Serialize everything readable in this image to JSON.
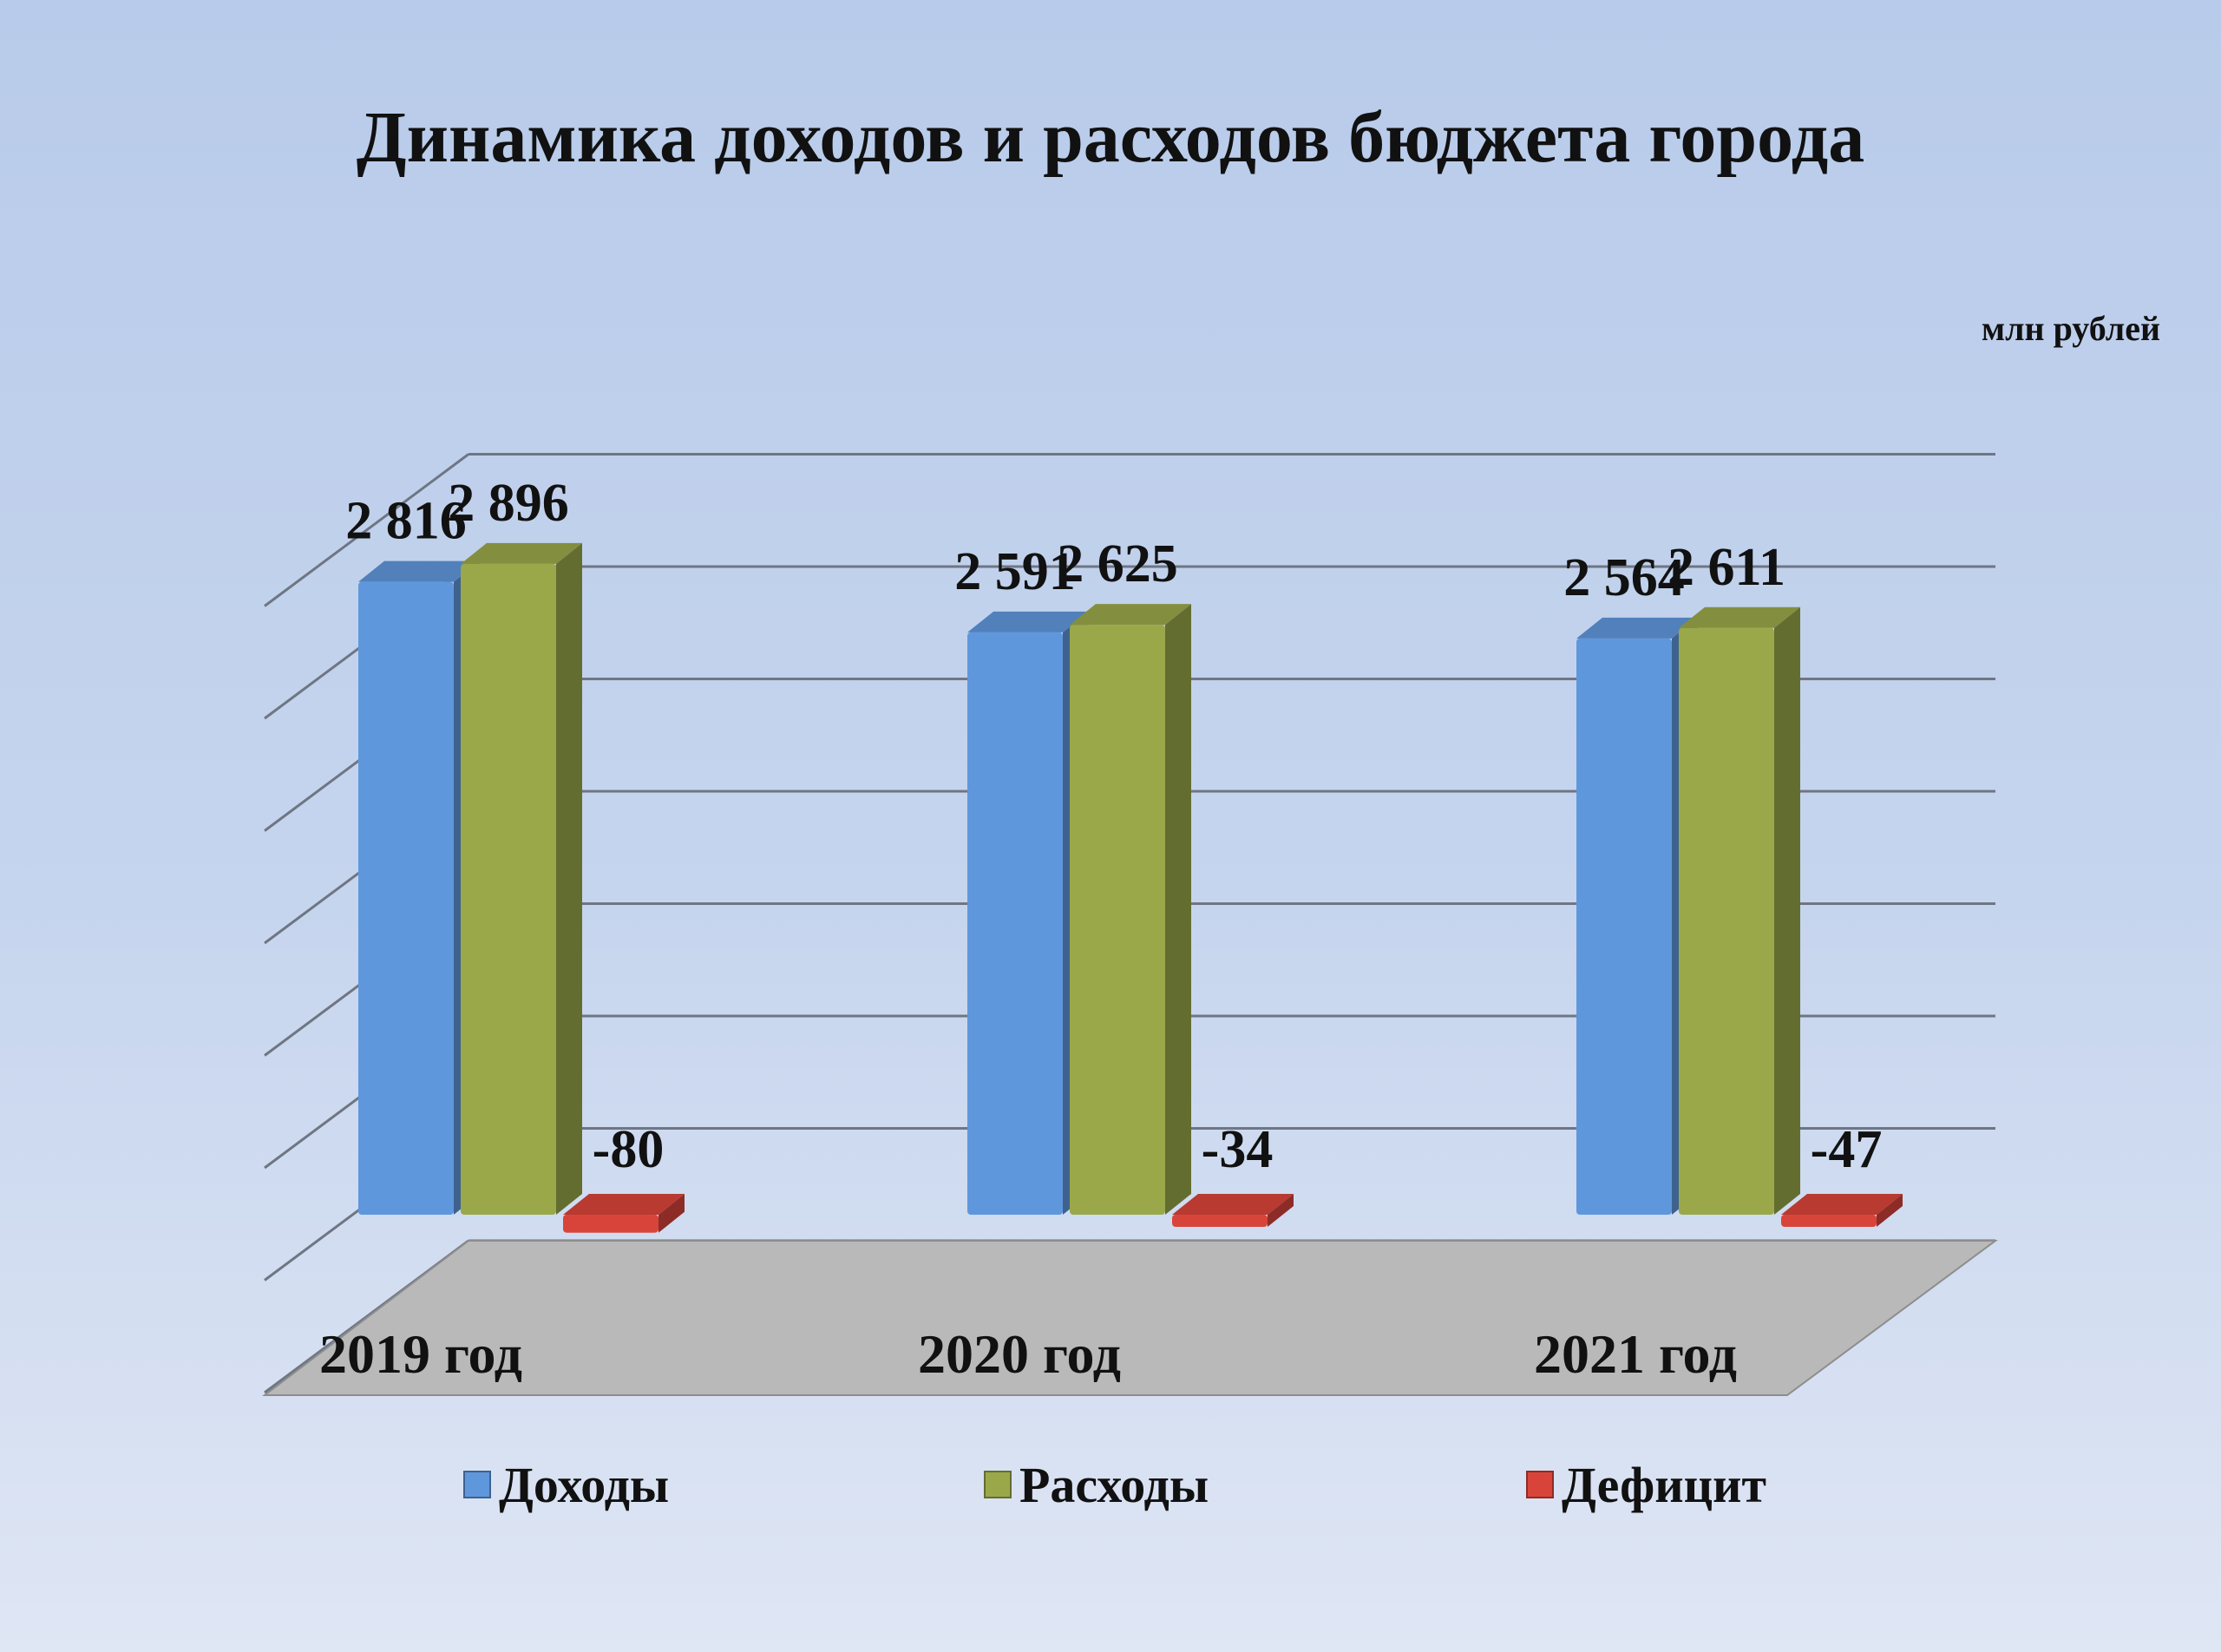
{
  "chart_data": {
    "type": "bar",
    "title": "Динамика доходов и расходов бюджета города",
    "unit_label": "млн рублей",
    "categories": [
      "2019 год",
      "2020 год",
      "2021 год"
    ],
    "series": [
      {
        "name": "Доходы",
        "color": "#5f97dc",
        "values": [
          2816,
          2591,
          2564
        ],
        "labels": [
          "2 816",
          "2 591",
          "2 564"
        ]
      },
      {
        "name": "Расходы",
        "color": "#9aa84a",
        "values": [
          2896,
          2625,
          2611
        ],
        "labels": [
          "2 896",
          "2 625",
          "2 611"
        ]
      },
      {
        "name": "Дефицит",
        "color": "#d9443a",
        "values": [
          -80,
          -34,
          -47
        ],
        "labels": [
          "-80",
          "-34",
          "-47"
        ]
      }
    ],
    "ylim": [
      0,
      3500
    ],
    "grid": true,
    "legend_position": "bottom",
    "three_d": true
  }
}
